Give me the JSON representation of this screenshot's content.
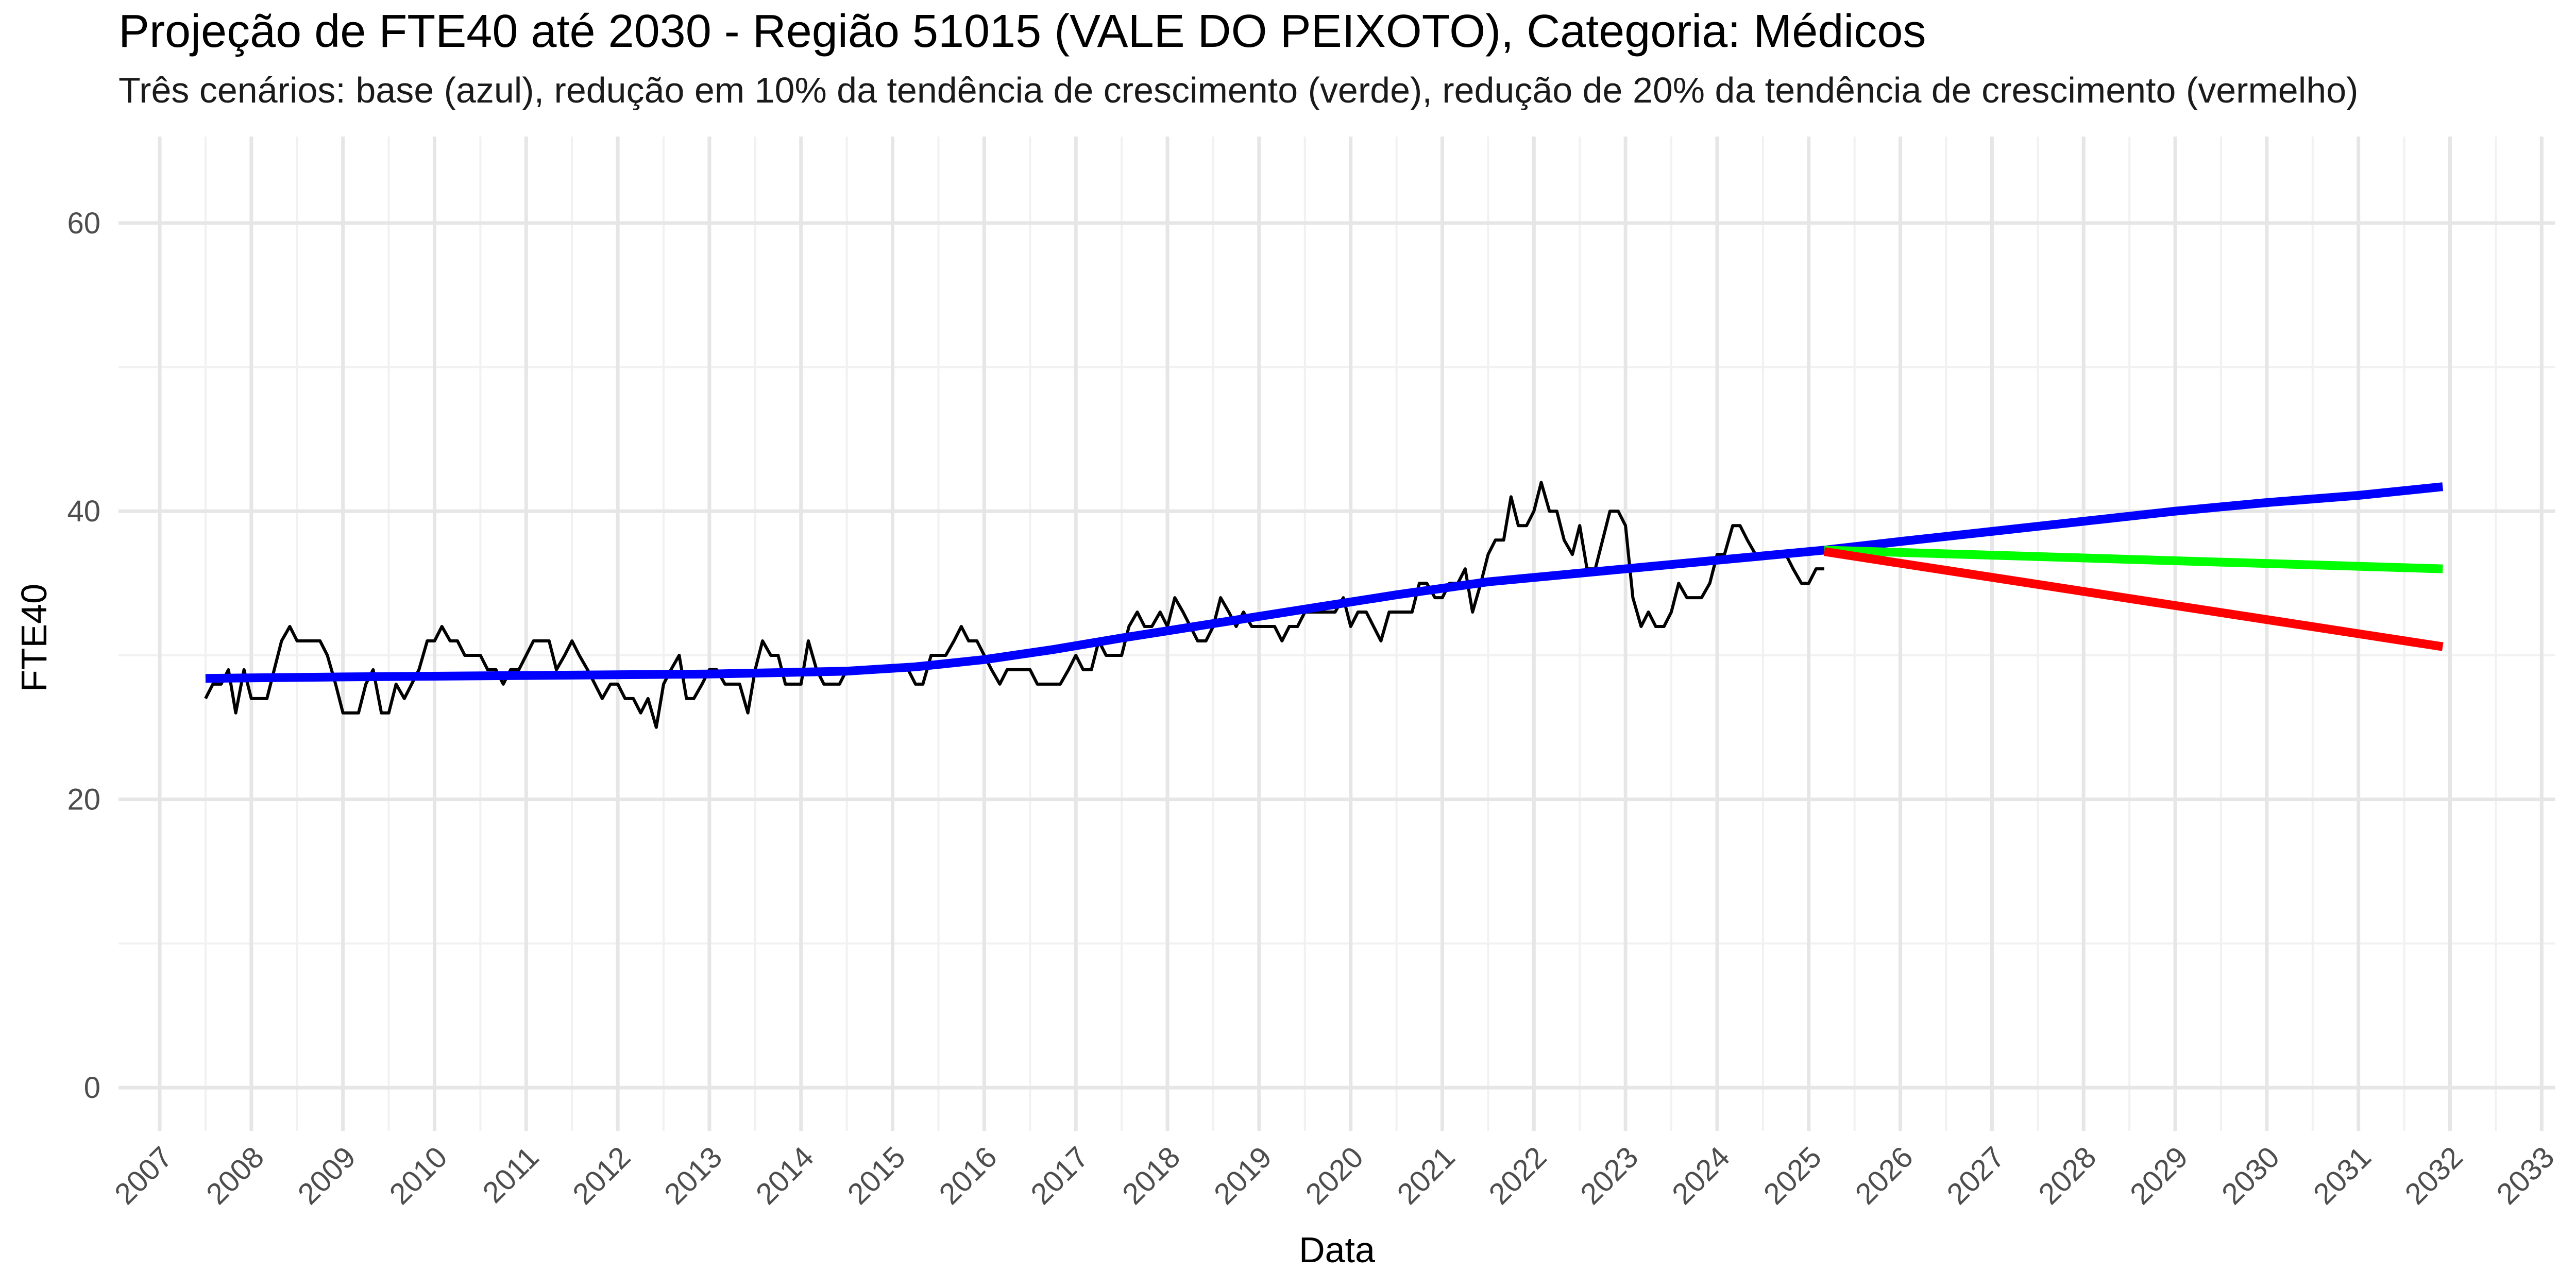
{
  "chart_data": {
    "type": "line",
    "title": "Projeção de FTE40 até 2030 - Região 51015 (VALE DO PEIXOTO), Categoria: Médicos",
    "subtitle": "Três cenários: base (azul), redução em 10% da tendência de crescimento (verde), redução de 20% da tendência de crescimento (vermelho)",
    "xlabel": "Data",
    "ylabel": "FTE40",
    "xlim": [
      2006.55,
      2033.15
    ],
    "ylim": [
      -3,
      66
    ],
    "x_ticks": [
      2007,
      2008,
      2009,
      2010,
      2011,
      2012,
      2013,
      2014,
      2015,
      2016,
      2017,
      2018,
      2019,
      2020,
      2021,
      2022,
      2023,
      2024,
      2025,
      2026,
      2027,
      2028,
      2029,
      2030,
      2031,
      2032,
      2033
    ],
    "y_ticks": [
      0,
      20,
      40,
      60
    ],
    "grid": true,
    "legend": "none",
    "series": [
      {
        "key": "observed",
        "color": "#000000",
        "points": [
          [
            2007.5,
            27
          ],
          [
            2007.58,
            28
          ],
          [
            2007.67,
            28
          ],
          [
            2007.75,
            29
          ],
          [
            2007.83,
            26
          ],
          [
            2007.92,
            29
          ],
          [
            2008.0,
            27
          ],
          [
            2008.08,
            27
          ],
          [
            2008.17,
            27
          ],
          [
            2008.25,
            29
          ],
          [
            2008.33,
            31
          ],
          [
            2008.42,
            32
          ],
          [
            2008.5,
            31
          ],
          [
            2008.58,
            31
          ],
          [
            2008.67,
            31
          ],
          [
            2008.75,
            31
          ],
          [
            2008.83,
            30
          ],
          [
            2008.92,
            28
          ],
          [
            2009.0,
            26
          ],
          [
            2009.08,
            26
          ],
          [
            2009.17,
            26
          ],
          [
            2009.25,
            28
          ],
          [
            2009.33,
            29
          ],
          [
            2009.42,
            26
          ],
          [
            2009.5,
            26
          ],
          [
            2009.58,
            28
          ],
          [
            2009.67,
            27
          ],
          [
            2009.75,
            28
          ],
          [
            2009.83,
            29
          ],
          [
            2009.92,
            31
          ],
          [
            2010.0,
            31
          ],
          [
            2010.08,
            32
          ],
          [
            2010.17,
            31
          ],
          [
            2010.25,
            31
          ],
          [
            2010.33,
            30
          ],
          [
            2010.42,
            30
          ],
          [
            2010.5,
            30
          ],
          [
            2010.58,
            29
          ],
          [
            2010.67,
            29
          ],
          [
            2010.75,
            28
          ],
          [
            2010.83,
            29
          ],
          [
            2010.92,
            29
          ],
          [
            2011.0,
            30
          ],
          [
            2011.08,
            31
          ],
          [
            2011.17,
            31
          ],
          [
            2011.25,
            31
          ],
          [
            2011.33,
            29
          ],
          [
            2011.42,
            30
          ],
          [
            2011.5,
            31
          ],
          [
            2011.58,
            30
          ],
          [
            2011.67,
            29
          ],
          [
            2011.75,
            28
          ],
          [
            2011.83,
            27
          ],
          [
            2011.92,
            28
          ],
          [
            2012.0,
            28
          ],
          [
            2012.08,
            27
          ],
          [
            2012.17,
            27
          ],
          [
            2012.25,
            26
          ],
          [
            2012.33,
            27
          ],
          [
            2012.42,
            25
          ],
          [
            2012.5,
            28
          ],
          [
            2012.58,
            29
          ],
          [
            2012.67,
            30
          ],
          [
            2012.75,
            27
          ],
          [
            2012.83,
            27
          ],
          [
            2012.92,
            28
          ],
          [
            2013.0,
            29
          ],
          [
            2013.08,
            29
          ],
          [
            2013.17,
            28
          ],
          [
            2013.25,
            28
          ],
          [
            2013.33,
            28
          ],
          [
            2013.42,
            26
          ],
          [
            2013.5,
            29
          ],
          [
            2013.58,
            31
          ],
          [
            2013.67,
            30
          ],
          [
            2013.75,
            30
          ],
          [
            2013.83,
            28
          ],
          [
            2013.92,
            28
          ],
          [
            2014.0,
            28
          ],
          [
            2014.08,
            31
          ],
          [
            2014.17,
            29
          ],
          [
            2014.25,
            28
          ],
          [
            2014.33,
            28
          ],
          [
            2014.42,
            28
          ],
          [
            2014.5,
            29
          ],
          [
            2014.58,
            29
          ],
          [
            2014.67,
            29
          ],
          [
            2014.75,
            29
          ],
          [
            2014.83,
            29
          ],
          [
            2014.92,
            29
          ],
          [
            2015.0,
            29
          ],
          [
            2015.08,
            29
          ],
          [
            2015.17,
            29
          ],
          [
            2015.25,
            28
          ],
          [
            2015.33,
            28
          ],
          [
            2015.42,
            30
          ],
          [
            2015.5,
            30
          ],
          [
            2015.58,
            30
          ],
          [
            2015.67,
            31
          ],
          [
            2015.75,
            32
          ],
          [
            2015.83,
            31
          ],
          [
            2015.92,
            31
          ],
          [
            2016.0,
            30
          ],
          [
            2016.08,
            29
          ],
          [
            2016.17,
            28
          ],
          [
            2016.25,
            29
          ],
          [
            2016.33,
            29
          ],
          [
            2016.42,
            29
          ],
          [
            2016.5,
            29
          ],
          [
            2016.58,
            28
          ],
          [
            2016.67,
            28
          ],
          [
            2016.75,
            28
          ],
          [
            2016.83,
            28
          ],
          [
            2016.92,
            29
          ],
          [
            2017.0,
            30
          ],
          [
            2017.08,
            29
          ],
          [
            2017.17,
            29
          ],
          [
            2017.25,
            31
          ],
          [
            2017.33,
            30
          ],
          [
            2017.42,
            30
          ],
          [
            2017.5,
            30
          ],
          [
            2017.58,
            32
          ],
          [
            2017.67,
            33
          ],
          [
            2017.75,
            32
          ],
          [
            2017.83,
            32
          ],
          [
            2017.92,
            33
          ],
          [
            2018.0,
            32
          ],
          [
            2018.08,
            34
          ],
          [
            2018.17,
            33
          ],
          [
            2018.25,
            32
          ],
          [
            2018.33,
            31
          ],
          [
            2018.42,
            31
          ],
          [
            2018.5,
            32
          ],
          [
            2018.58,
            34
          ],
          [
            2018.67,
            33
          ],
          [
            2018.75,
            32
          ],
          [
            2018.83,
            33
          ],
          [
            2018.92,
            32
          ],
          [
            2019.0,
            32
          ],
          [
            2019.08,
            32
          ],
          [
            2019.17,
            32
          ],
          [
            2019.25,
            31
          ],
          [
            2019.33,
            32
          ],
          [
            2019.42,
            32
          ],
          [
            2019.5,
            33
          ],
          [
            2019.58,
            33
          ],
          [
            2019.67,
            33
          ],
          [
            2019.75,
            33
          ],
          [
            2019.83,
            33
          ],
          [
            2019.92,
            34
          ],
          [
            2020.0,
            32
          ],
          [
            2020.08,
            33
          ],
          [
            2020.17,
            33
          ],
          [
            2020.25,
            32
          ],
          [
            2020.33,
            31
          ],
          [
            2020.42,
            33
          ],
          [
            2020.5,
            33
          ],
          [
            2020.58,
            33
          ],
          [
            2020.67,
            33
          ],
          [
            2020.75,
            35
          ],
          [
            2020.83,
            35
          ],
          [
            2020.92,
            34
          ],
          [
            2021.0,
            34
          ],
          [
            2021.08,
            35
          ],
          [
            2021.17,
            35
          ],
          [
            2021.25,
            36
          ],
          [
            2021.33,
            33
          ],
          [
            2021.42,
            35
          ],
          [
            2021.5,
            37
          ],
          [
            2021.58,
            38
          ],
          [
            2021.67,
            38
          ],
          [
            2021.75,
            41
          ],
          [
            2021.83,
            39
          ],
          [
            2021.92,
            39
          ],
          [
            2022.0,
            40
          ],
          [
            2022.08,
            42
          ],
          [
            2022.17,
            40
          ],
          [
            2022.25,
            40
          ],
          [
            2022.33,
            38
          ],
          [
            2022.42,
            37
          ],
          [
            2022.5,
            39
          ],
          [
            2022.58,
            36
          ],
          [
            2022.67,
            36
          ],
          [
            2022.75,
            38
          ],
          [
            2022.83,
            40
          ],
          [
            2022.92,
            40
          ],
          [
            2023.0,
            39
          ],
          [
            2023.08,
            34
          ],
          [
            2023.17,
            32
          ],
          [
            2023.25,
            33
          ],
          [
            2023.33,
            32
          ],
          [
            2023.42,
            32
          ],
          [
            2023.5,
            33
          ],
          [
            2023.58,
            35
          ],
          [
            2023.67,
            34
          ],
          [
            2023.75,
            34
          ],
          [
            2023.83,
            34
          ],
          [
            2023.92,
            35
          ],
          [
            2024.0,
            37
          ],
          [
            2024.08,
            37
          ],
          [
            2024.17,
            39
          ],
          [
            2024.25,
            39
          ],
          [
            2024.33,
            38
          ],
          [
            2024.42,
            37
          ],
          [
            2024.5,
            37
          ],
          [
            2024.58,
            37
          ],
          [
            2024.67,
            37
          ],
          [
            2024.75,
            37
          ],
          [
            2024.83,
            36
          ],
          [
            2024.92,
            35
          ],
          [
            2025.0,
            35
          ],
          [
            2025.08,
            36
          ],
          [
            2025.17,
            36
          ]
        ]
      },
      {
        "key": "base",
        "color": "#0000ff",
        "points": [
          [
            2007.5,
            28.4
          ],
          [
            2009.0,
            28.5
          ],
          [
            2011.0,
            28.6
          ],
          [
            2013.0,
            28.7
          ],
          [
            2014.5,
            28.9
          ],
          [
            2015.25,
            29.2
          ],
          [
            2016.0,
            29.7
          ],
          [
            2016.75,
            30.4
          ],
          [
            2017.5,
            31.2
          ],
          [
            2018.5,
            32.2
          ],
          [
            2019.5,
            33.2
          ],
          [
            2020.5,
            34.2
          ],
          [
            2021.5,
            35.1
          ],
          [
            2022.5,
            35.7
          ],
          [
            2023.5,
            36.3
          ],
          [
            2024.5,
            36.9
          ],
          [
            2025.17,
            37.3
          ],
          [
            2026.0,
            37.9
          ],
          [
            2027.0,
            38.6
          ],
          [
            2028.0,
            39.3
          ],
          [
            2029.0,
            40.0
          ],
          [
            2030.0,
            40.6
          ],
          [
            2031.0,
            41.1
          ],
          [
            2031.92,
            41.7
          ]
        ]
      },
      {
        "key": "reducao_10",
        "color": "#00ff00",
        "points": [
          [
            2025.17,
            37.3
          ],
          [
            2031.92,
            36.0
          ]
        ]
      },
      {
        "key": "reducao_20",
        "color": "#ff0000",
        "points": [
          [
            2025.17,
            37.2
          ],
          [
            2031.92,
            30.6
          ]
        ]
      }
    ]
  }
}
